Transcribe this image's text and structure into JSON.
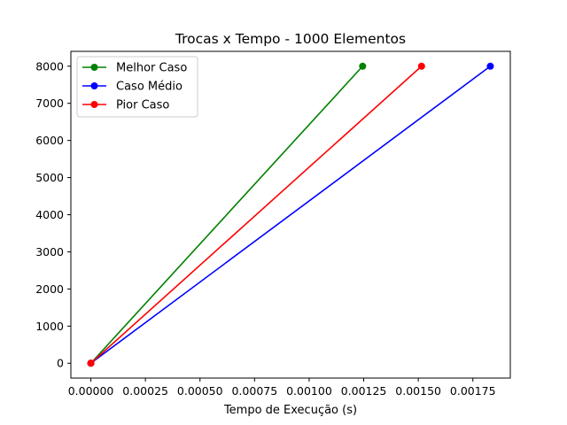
{
  "chart_data": {
    "type": "line",
    "title": "Trocas x Tempo - 1000 Elementos",
    "xlabel": "Tempo de Execução (s)",
    "ylabel": "",
    "xlim": [
      -9.15e-05,
      0.0019215
    ],
    "ylim": [
      -400,
      8400
    ],
    "x_ticks": [
      0,
      0.00025,
      0.0005,
      0.00075,
      0.001,
      0.00125,
      0.0015,
      0.00175
    ],
    "x_tick_labels": [
      "0.00000",
      "0.00025",
      "0.00050",
      "0.00075",
      "0.00100",
      "0.00125",
      "0.00150",
      "0.00175"
    ],
    "y_ticks": [
      0,
      1000,
      2000,
      3000,
      4000,
      5000,
      6000,
      7000,
      8000
    ],
    "y_tick_labels": [
      "0",
      "1000",
      "2000",
      "3000",
      "4000",
      "5000",
      "6000",
      "7000",
      "8000"
    ],
    "grid": false,
    "legend_position": "top-left",
    "series": [
      {
        "name": "Melhor Caso",
        "color": "#008000",
        "points": [
          [
            0,
            0
          ],
          [
            0.001245,
            8000
          ]
        ]
      },
      {
        "name": "Caso Médio",
        "color": "#0000ff",
        "points": [
          [
            0,
            0
          ],
          [
            0.00183,
            8000
          ]
        ]
      },
      {
        "name": "Pior Caso",
        "color": "#ff0000",
        "points": [
          [
            0,
            0
          ],
          [
            0.001515,
            8000
          ]
        ]
      }
    ]
  }
}
